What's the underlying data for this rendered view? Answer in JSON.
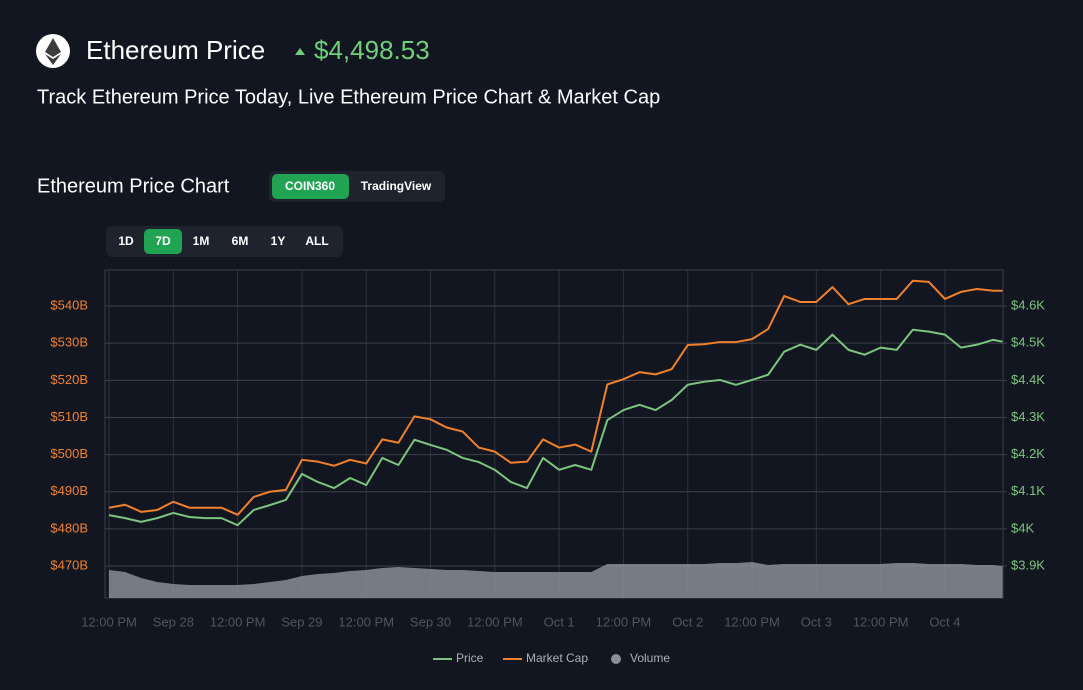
{
  "header": {
    "title": "Ethereum Price",
    "price": "$4,498.53",
    "subtitle": "Track Ethereum Price Today, Live Ethereum Price Chart & Market Cap"
  },
  "section": {
    "title": "Ethereum Price Chart",
    "sources": [
      "COIN360",
      "TradingView"
    ],
    "ranges": [
      "1D",
      "7D",
      "1M",
      "6M",
      "1Y",
      "ALL"
    ]
  },
  "chart_data": {
    "type": "line",
    "x": [
      "Sep 27 12:00",
      "Sep 27 15:00",
      "Sep 27 18:00",
      "Sep 27 21:00",
      "Sep 28 00:00",
      "Sep 28 03:00",
      "Sep 28 06:00",
      "Sep 28 09:00",
      "Sep 28 12:00",
      "Sep 28 15:00",
      "Sep 28 18:00",
      "Sep 28 21:00",
      "Sep 29 00:00",
      "Sep 29 03:00",
      "Sep 29 06:00",
      "Sep 29 09:00",
      "Sep 29 12:00",
      "Sep 29 15:00",
      "Sep 29 18:00",
      "Sep 29 21:00",
      "Sep 30 00:00",
      "Sep 30 03:00",
      "Sep 30 06:00",
      "Sep 30 09:00",
      "Sep 30 12:00",
      "Sep 30 15:00",
      "Sep 30 18:00",
      "Sep 30 21:00",
      "Oct 1 00:00",
      "Oct 1 03:00",
      "Oct 1 06:00",
      "Oct 1 09:00",
      "Oct 1 12:00",
      "Oct 1 15:00",
      "Oct 1 18:00",
      "Oct 1 21:00",
      "Oct 2 00:00",
      "Oct 2 03:00",
      "Oct 2 06:00",
      "Oct 2 09:00",
      "Oct 2 12:00",
      "Oct 2 15:00",
      "Oct 2 18:00",
      "Oct 2 21:00",
      "Oct 3 00:00",
      "Oct 3 03:00",
      "Oct 3 06:00",
      "Oct 3 09:00",
      "Oct 3 12:00",
      "Oct 3 15:00",
      "Oct 3 18:00",
      "Oct 3 21:00",
      "Oct 4 00:00",
      "Oct 4 03:00",
      "Oct 4 06:00",
      "Oct 4 09:00",
      "Oct 4 10:45"
    ],
    "series": [
      {
        "name": "Price",
        "color": "#7cc47f",
        "axis": "y2",
        "values": [
          4037,
          4029,
          4019,
          4029,
          4043,
          4032,
          4029,
          4029,
          4010,
          4051,
          4064,
          4078,
          4148,
          4126,
          4110,
          4137,
          4118,
          4191,
          4172,
          4240,
          4226,
          4213,
          4191,
          4180,
          4159,
          4126,
          4110,
          4191,
          4159,
          4172,
          4159,
          4293,
          4320,
          4334,
          4320,
          4347,
          4388,
          4396,
          4401,
          4388,
          4401,
          4415,
          4477,
          4496,
          4482,
          4523,
          4482,
          4469,
          4488,
          4482,
          4536,
          4531,
          4523,
          4488,
          4496,
          4509,
          4504
        ]
      },
      {
        "name": "Market Cap",
        "color": "#f0812a",
        "axis": "y",
        "values": [
          485.7,
          486.5,
          484.6,
          485.1,
          487.3,
          485.7,
          485.7,
          485.7,
          483.8,
          488.6,
          490.0,
          490.5,
          498.6,
          498.1,
          497.0,
          498.6,
          497.6,
          504.1,
          503.2,
          510.3,
          509.5,
          507.3,
          506.2,
          501.9,
          500.8,
          497.8,
          498.1,
          504.1,
          501.9,
          502.7,
          500.8,
          518.9,
          520.3,
          522.2,
          521.6,
          523.0,
          529.5,
          529.7,
          530.3,
          530.3,
          531.1,
          533.8,
          542.7,
          541.1,
          541.1,
          545.1,
          540.5,
          541.9,
          541.9,
          541.9,
          546.8,
          546.5,
          541.9,
          543.8,
          544.6,
          544.1,
          544.1
        ]
      },
      {
        "name": "Volume",
        "color": "#8a8e96",
        "values": [
          28,
          26,
          20,
          16,
          14,
          13,
          13,
          13,
          13,
          14,
          16,
          18,
          22,
          24,
          25,
          27,
          28,
          30,
          31,
          30,
          29,
          28,
          28,
          27,
          26,
          26,
          26,
          26,
          26,
          26,
          26,
          34,
          34,
          34,
          34,
          34,
          34,
          34,
          35,
          35,
          36,
          33,
          34,
          34,
          34,
          34,
          34,
          34,
          34,
          35,
          35,
          34,
          34,
          34,
          33,
          33,
          32
        ]
      }
    ],
    "xlim": [
      "Sep 27 11:15",
      "Oct 4 10:50"
    ],
    "xticks": [
      {
        "value": "Sep 27 12:00",
        "label": "12:00 PM"
      },
      {
        "value": "Sep 28 00:00",
        "label": "Sep 28"
      },
      {
        "value": "Sep 28 12:00",
        "label": "12:00 PM"
      },
      {
        "value": "Sep 29 00:00",
        "label": "Sep 29"
      },
      {
        "value": "Sep 29 12:00",
        "label": "12:00 PM"
      },
      {
        "value": "Sep 30 00:00",
        "label": "Sep 30"
      },
      {
        "value": "Sep 30 12:00",
        "label": "12:00 PM"
      },
      {
        "value": "Oct 1 00:00",
        "label": "Oct 1"
      },
      {
        "value": "Oct 1 12:00",
        "label": "12:00 PM"
      },
      {
        "value": "Oct 2 00:00",
        "label": "Oct 2"
      },
      {
        "value": "Oct 2 12:00",
        "label": "12:00 PM"
      },
      {
        "value": "Oct 3 00:00",
        "label": "Oct 3"
      },
      {
        "value": "Oct 3 12:00",
        "label": "12:00 PM"
      },
      {
        "value": "Oct 4 00:00",
        "label": "Oct 4"
      }
    ],
    "ylim": [
      461.4,
      549.7
    ],
    "yticks": [
      {
        "value": 470,
        "label": "$470B"
      },
      {
        "value": 480,
        "label": "$480B"
      },
      {
        "value": 490,
        "label": "$490B"
      },
      {
        "value": 500,
        "label": "$500B"
      },
      {
        "value": 510,
        "label": "$510B"
      },
      {
        "value": 520,
        "label": "$520B"
      },
      {
        "value": 530,
        "label": "$530B"
      },
      {
        "value": 540,
        "label": "$540B"
      }
    ],
    "y2lim": [
      3814,
      4697
    ],
    "y2ticks": [
      {
        "value": 3900,
        "label": "$3.9K"
      },
      {
        "value": 4000,
        "label": "$4K"
      },
      {
        "value": 4100,
        "label": "$4.1K"
      },
      {
        "value": 4200,
        "label": "$4.2K"
      },
      {
        "value": 4300,
        "label": "$4.3K"
      },
      {
        "value": 4400,
        "label": "$4.4K"
      },
      {
        "value": 4500,
        "label": "$4.5K"
      },
      {
        "value": 4600,
        "label": "$4.6K"
      }
    ],
    "ytick_color": "#f0812a",
    "y2tick_color": "#7cc47f",
    "grid": true
  }
}
